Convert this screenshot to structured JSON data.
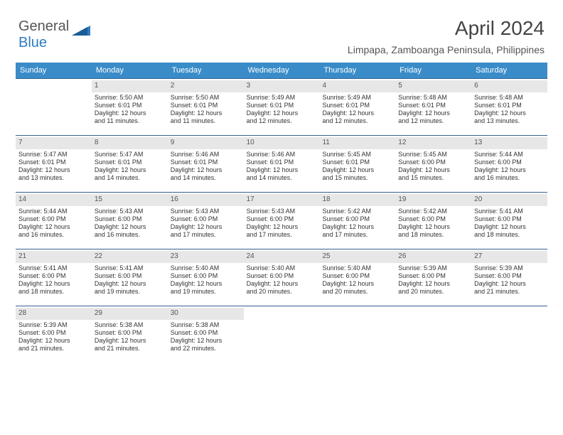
{
  "logo": {
    "text_a": "General",
    "text_b": "Blue"
  },
  "title": "April 2024",
  "subtitle": "Limpapa, Zamboanga Peninsula, Philippines",
  "colors": {
    "header_bg": "#3a8cc9",
    "header_fg": "#ffffff",
    "daynum_bg": "#e7e7e7",
    "week_rule": "#33608f",
    "text": "#333333",
    "title": "#444444",
    "logo_blue": "#2d7cc1"
  },
  "days_of_week": [
    "Sunday",
    "Monday",
    "Tuesday",
    "Wednesday",
    "Thursday",
    "Friday",
    "Saturday"
  ],
  "fonts": {
    "title_size": 28,
    "subtitle_size": 14,
    "head_size": 11,
    "body_size": 9
  },
  "weeks": [
    [
      {
        "n": "",
        "empty": true
      },
      {
        "n": "1",
        "l": [
          "Sunrise: 5:50 AM",
          "Sunset: 6:01 PM",
          "Daylight: 12 hours",
          "and 11 minutes."
        ]
      },
      {
        "n": "2",
        "l": [
          "Sunrise: 5:50 AM",
          "Sunset: 6:01 PM",
          "Daylight: 12 hours",
          "and 11 minutes."
        ]
      },
      {
        "n": "3",
        "l": [
          "Sunrise: 5:49 AM",
          "Sunset: 6:01 PM",
          "Daylight: 12 hours",
          "and 12 minutes."
        ]
      },
      {
        "n": "4",
        "l": [
          "Sunrise: 5:49 AM",
          "Sunset: 6:01 PM",
          "Daylight: 12 hours",
          "and 12 minutes."
        ]
      },
      {
        "n": "5",
        "l": [
          "Sunrise: 5:48 AM",
          "Sunset: 6:01 PM",
          "Daylight: 12 hours",
          "and 12 minutes."
        ]
      },
      {
        "n": "6",
        "l": [
          "Sunrise: 5:48 AM",
          "Sunset: 6:01 PM",
          "Daylight: 12 hours",
          "and 13 minutes."
        ]
      }
    ],
    [
      {
        "n": "7",
        "l": [
          "Sunrise: 5:47 AM",
          "Sunset: 6:01 PM",
          "Daylight: 12 hours",
          "and 13 minutes."
        ]
      },
      {
        "n": "8",
        "l": [
          "Sunrise: 5:47 AM",
          "Sunset: 6:01 PM",
          "Daylight: 12 hours",
          "and 14 minutes."
        ]
      },
      {
        "n": "9",
        "l": [
          "Sunrise: 5:46 AM",
          "Sunset: 6:01 PM",
          "Daylight: 12 hours",
          "and 14 minutes."
        ]
      },
      {
        "n": "10",
        "l": [
          "Sunrise: 5:46 AM",
          "Sunset: 6:01 PM",
          "Daylight: 12 hours",
          "and 14 minutes."
        ]
      },
      {
        "n": "11",
        "l": [
          "Sunrise: 5:45 AM",
          "Sunset: 6:01 PM",
          "Daylight: 12 hours",
          "and 15 minutes."
        ]
      },
      {
        "n": "12",
        "l": [
          "Sunrise: 5:45 AM",
          "Sunset: 6:00 PM",
          "Daylight: 12 hours",
          "and 15 minutes."
        ]
      },
      {
        "n": "13",
        "l": [
          "Sunrise: 5:44 AM",
          "Sunset: 6:00 PM",
          "Daylight: 12 hours",
          "and 16 minutes."
        ]
      }
    ],
    [
      {
        "n": "14",
        "l": [
          "Sunrise: 5:44 AM",
          "Sunset: 6:00 PM",
          "Daylight: 12 hours",
          "and 16 minutes."
        ]
      },
      {
        "n": "15",
        "l": [
          "Sunrise: 5:43 AM",
          "Sunset: 6:00 PM",
          "Daylight: 12 hours",
          "and 16 minutes."
        ]
      },
      {
        "n": "16",
        "l": [
          "Sunrise: 5:43 AM",
          "Sunset: 6:00 PM",
          "Daylight: 12 hours",
          "and 17 minutes."
        ]
      },
      {
        "n": "17",
        "l": [
          "Sunrise: 5:43 AM",
          "Sunset: 6:00 PM",
          "Daylight: 12 hours",
          "and 17 minutes."
        ]
      },
      {
        "n": "18",
        "l": [
          "Sunrise: 5:42 AM",
          "Sunset: 6:00 PM",
          "Daylight: 12 hours",
          "and 17 minutes."
        ]
      },
      {
        "n": "19",
        "l": [
          "Sunrise: 5:42 AM",
          "Sunset: 6:00 PM",
          "Daylight: 12 hours",
          "and 18 minutes."
        ]
      },
      {
        "n": "20",
        "l": [
          "Sunrise: 5:41 AM",
          "Sunset: 6:00 PM",
          "Daylight: 12 hours",
          "and 18 minutes."
        ]
      }
    ],
    [
      {
        "n": "21",
        "l": [
          "Sunrise: 5:41 AM",
          "Sunset: 6:00 PM",
          "Daylight: 12 hours",
          "and 18 minutes."
        ]
      },
      {
        "n": "22",
        "l": [
          "Sunrise: 5:41 AM",
          "Sunset: 6:00 PM",
          "Daylight: 12 hours",
          "and 19 minutes."
        ]
      },
      {
        "n": "23",
        "l": [
          "Sunrise: 5:40 AM",
          "Sunset: 6:00 PM",
          "Daylight: 12 hours",
          "and 19 minutes."
        ]
      },
      {
        "n": "24",
        "l": [
          "Sunrise: 5:40 AM",
          "Sunset: 6:00 PM",
          "Daylight: 12 hours",
          "and 20 minutes."
        ]
      },
      {
        "n": "25",
        "l": [
          "Sunrise: 5:40 AM",
          "Sunset: 6:00 PM",
          "Daylight: 12 hours",
          "and 20 minutes."
        ]
      },
      {
        "n": "26",
        "l": [
          "Sunrise: 5:39 AM",
          "Sunset: 6:00 PM",
          "Daylight: 12 hours",
          "and 20 minutes."
        ]
      },
      {
        "n": "27",
        "l": [
          "Sunrise: 5:39 AM",
          "Sunset: 6:00 PM",
          "Daylight: 12 hours",
          "and 21 minutes."
        ]
      }
    ],
    [
      {
        "n": "28",
        "l": [
          "Sunrise: 5:39 AM",
          "Sunset: 6:00 PM",
          "Daylight: 12 hours",
          "and 21 minutes."
        ]
      },
      {
        "n": "29",
        "l": [
          "Sunrise: 5:38 AM",
          "Sunset: 6:00 PM",
          "Daylight: 12 hours",
          "and 21 minutes."
        ]
      },
      {
        "n": "30",
        "l": [
          "Sunrise: 5:38 AM",
          "Sunset: 6:00 PM",
          "Daylight: 12 hours",
          "and 22 minutes."
        ]
      },
      {
        "n": "",
        "empty": true
      },
      {
        "n": "",
        "empty": true
      },
      {
        "n": "",
        "empty": true
      },
      {
        "n": "",
        "empty": true
      }
    ]
  ]
}
